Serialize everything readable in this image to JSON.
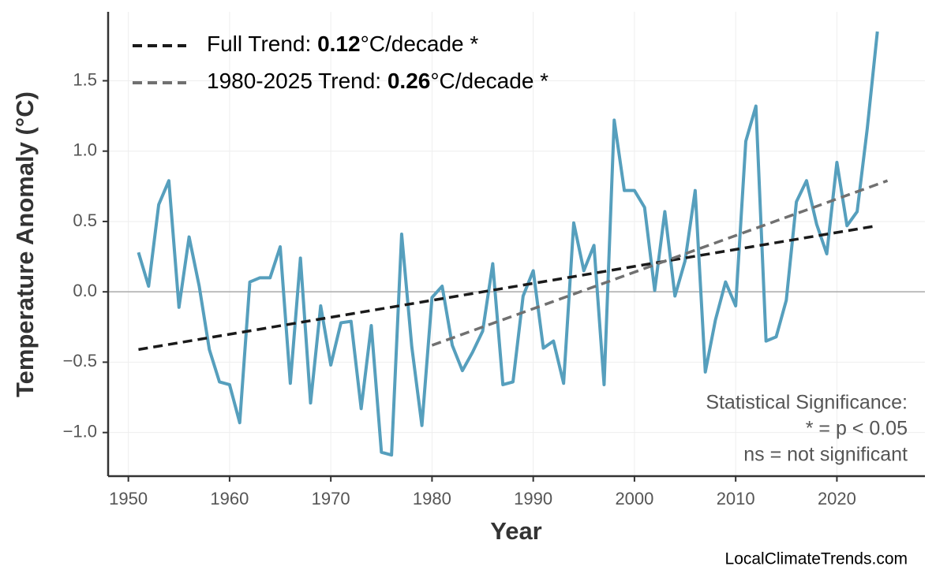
{
  "chart_data": {
    "type": "line",
    "xlabel": "Year",
    "ylabel": "Temperature Anomaly (°C)",
    "xlim": [
      1948,
      2028.7
    ],
    "ylim": [
      -1.31,
      1.99
    ],
    "xticks": [
      1950,
      1960,
      1970,
      1980,
      1990,
      2000,
      2010,
      2020
    ],
    "yticks": [
      {
        "value": -1,
        "label": "−1.0"
      },
      {
        "value": -0.5,
        "label": "−0.5"
      },
      {
        "value": 0,
        "label": "0.0"
      },
      0.5,
      {
        "value": 1,
        "label": "1.0"
      },
      1.5
    ],
    "grid": true,
    "x": [
      1951,
      1952,
      1953,
      1954,
      1955,
      1956,
      1957,
      1958,
      1959,
      1960,
      1961,
      1962,
      1963,
      1964,
      1965,
      1966,
      1967,
      1968,
      1969,
      1970,
      1971,
      1972,
      1973,
      1974,
      1975,
      1976,
      1977,
      1978,
      1979,
      1980,
      1981,
      1982,
      1983,
      1984,
      1985,
      1986,
      1987,
      1988,
      1989,
      1990,
      1991,
      1992,
      1993,
      1994,
      1995,
      1996,
      1997,
      1998,
      1999,
      2000,
      2001,
      2002,
      2003,
      2004,
      2005,
      2006,
      2007,
      2008,
      2009,
      2010,
      2011,
      2012,
      2013,
      2014,
      2015,
      2016,
      2017,
      2018,
      2019,
      2020,
      2021,
      2022,
      2023,
      2024
    ],
    "series": [
      {
        "color": "#569fbd",
        "values": [
          0.28,
          0.04,
          0.62,
          0.79,
          -0.11,
          0.39,
          0.04,
          -0.41,
          -0.64,
          -0.66,
          -0.93,
          0.07,
          0.1,
          0.1,
          0.32,
          -0.65,
          0.24,
          -0.79,
          -0.1,
          -0.52,
          -0.22,
          -0.21,
          -0.83,
          -0.24,
          -1.14,
          -1.16,
          0.41,
          -0.39,
          -0.95,
          -0.04,
          0.04,
          -0.38,
          -0.56,
          -0.43,
          -0.28,
          0.2,
          -0.66,
          -0.64,
          -0.03,
          0.15,
          -0.4,
          -0.35,
          -0.65,
          0.49,
          0.15,
          0.33,
          -0.66,
          1.22,
          0.72,
          0.72,
          0.6,
          0.01,
          0.57,
          -0.03,
          0.22,
          0.72,
          -0.57,
          -0.2,
          0.07,
          -0.1,
          1.07,
          1.32,
          -0.35,
          -0.32,
          -0.06,
          0.64,
          0.79,
          0.48,
          0.27,
          0.92,
          0.47,
          0.57,
          1.16,
          1.85
        ]
      }
    ],
    "trends": [
      {
        "name_parts": [
          "Full Trend: ",
          "0.12",
          "°C/decade *"
        ],
        "color": "#1a1a1a",
        "x": [
          1951,
          2024
        ],
        "values": [
          -0.41,
          0.47
        ]
      },
      {
        "name_parts": [
          "1980-2025 Trend: ",
          "0.26",
          "°C/decade *"
        ],
        "color": "#707070",
        "x": [
          1980,
          2025
        ],
        "values": [
          -0.38,
          0.79
        ]
      }
    ],
    "annotation": [
      "Statistical Significance:",
      "* = p < 0.05",
      "ns = not significant"
    ],
    "watermark": "LocalClimateTrends.com"
  }
}
